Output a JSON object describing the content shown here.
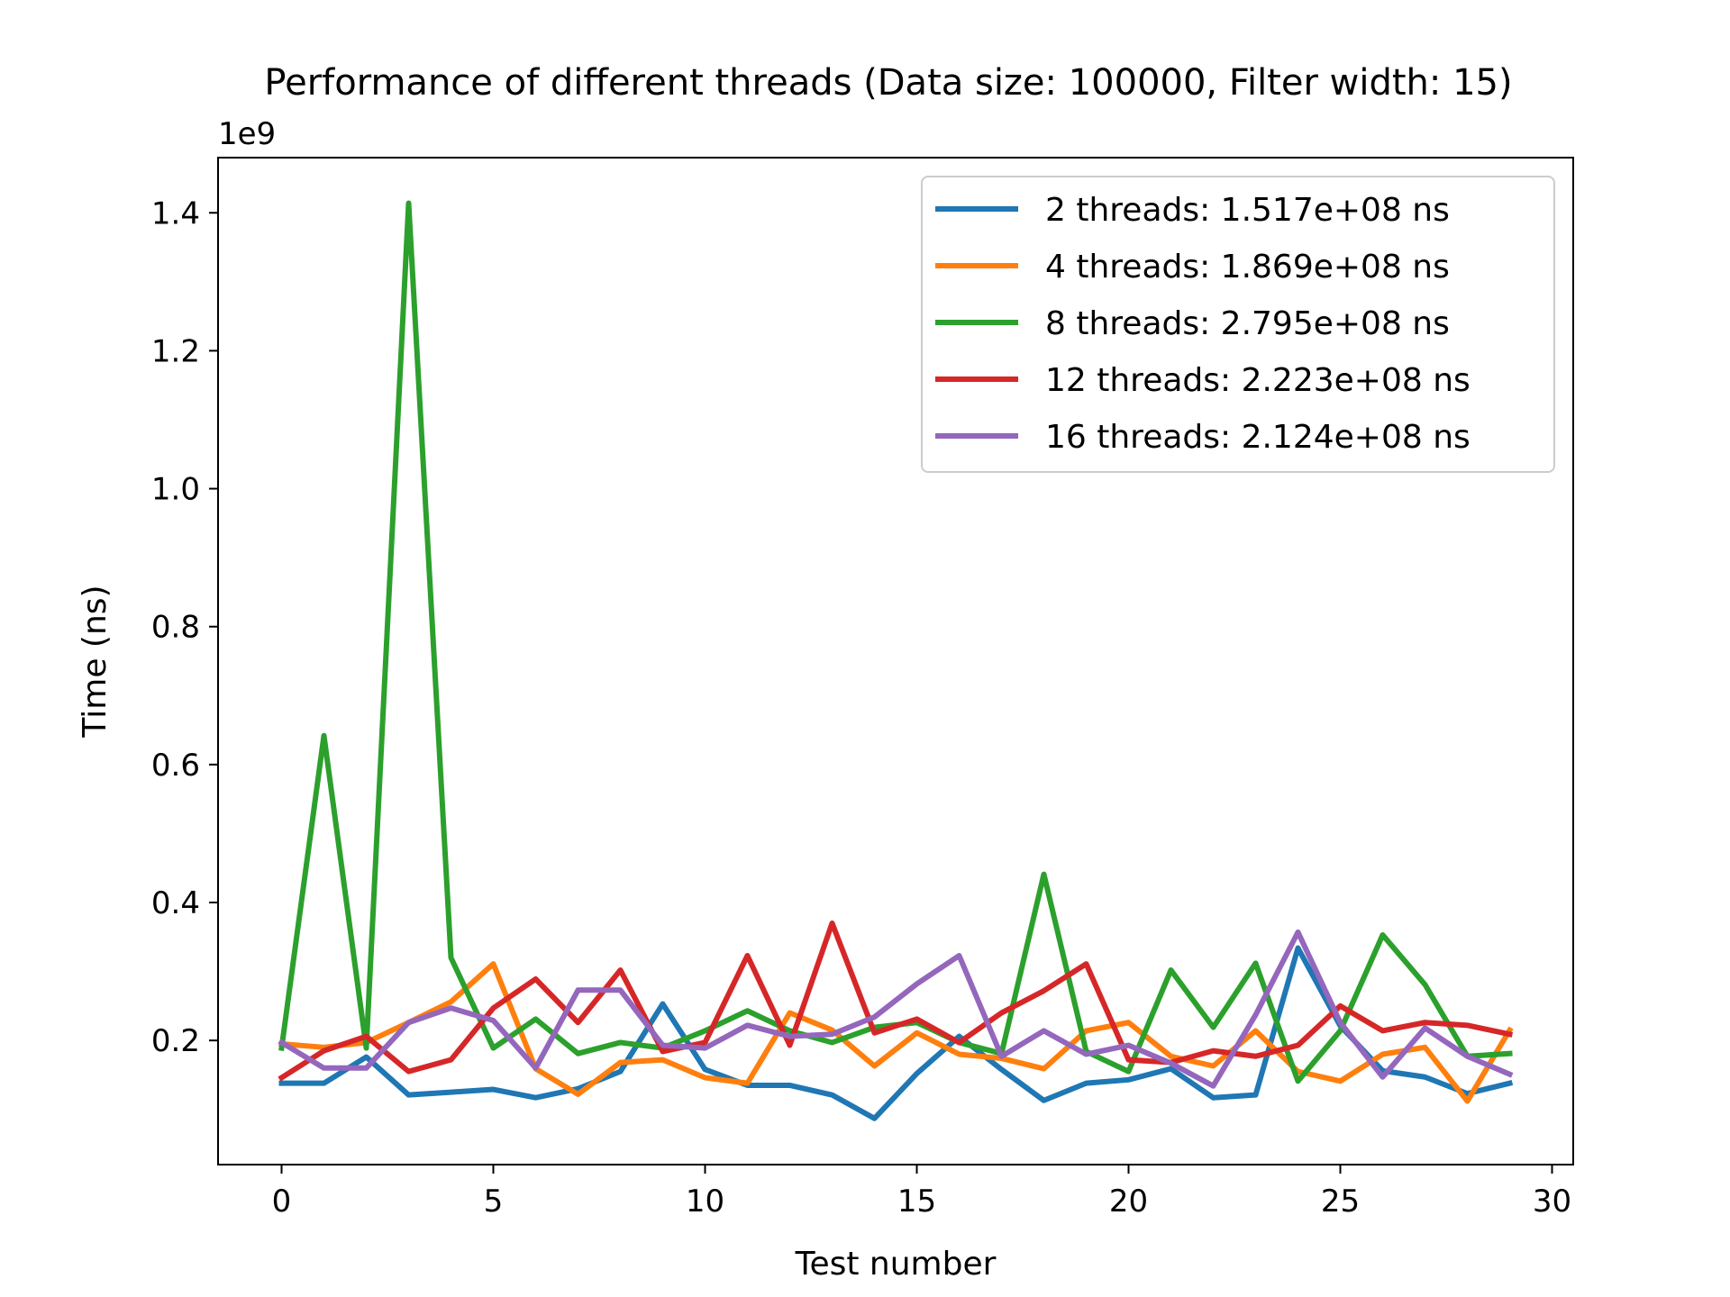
{
  "chart_data": {
    "type": "line",
    "title": "Performance of different threads (Data size: 100000, Filter width: 15)",
    "xlabel": "Test number",
    "ylabel": "Time (ns)",
    "y_offset_label": "1e9",
    "xlim": [
      -1.5,
      30.5
    ],
    "ylim": [
      0.02,
      1.48
    ],
    "x_ticks": [
      0,
      5,
      10,
      15,
      20,
      25,
      30
    ],
    "x_tick_labels": [
      "0",
      "5",
      "10",
      "15",
      "20",
      "25",
      "30"
    ],
    "y_ticks": [
      0.2,
      0.4,
      0.6,
      0.8,
      1.0,
      1.2,
      1.4
    ],
    "y_tick_labels": [
      "0.2",
      "0.4",
      "0.6",
      "0.8",
      "1.0",
      "1.2",
      "1.4"
    ],
    "grid": false,
    "legend_position": "top-right",
    "x": [
      0,
      1,
      2,
      3,
      4,
      5,
      6,
      7,
      8,
      9,
      10,
      11,
      12,
      13,
      14,
      15,
      16,
      17,
      18,
      19,
      20,
      21,
      22,
      23,
      24,
      25,
      26,
      27,
      28,
      29
    ],
    "series": [
      {
        "name": "2 threads: 1.517e+08 ns",
        "color": "#1f77b4",
        "values": [
          0.138,
          0.138,
          0.176,
          0.121,
          0.125,
          0.129,
          0.117,
          0.13,
          0.155,
          0.253,
          0.158,
          0.135,
          0.135,
          0.121,
          0.087,
          0.152,
          0.206,
          0.158,
          0.113,
          0.138,
          0.143,
          0.159,
          0.117,
          0.121,
          0.334,
          0.221,
          0.156,
          0.147,
          0.123,
          0.138
        ]
      },
      {
        "name": "4 threads: 1.869e+08 ns",
        "color": "#ff7f0e",
        "values": [
          0.195,
          0.19,
          0.197,
          0.226,
          0.256,
          0.311,
          0.159,
          0.122,
          0.168,
          0.172,
          0.146,
          0.138,
          0.24,
          0.215,
          0.163,
          0.211,
          0.18,
          0.174,
          0.159,
          0.214,
          0.226,
          0.177,
          0.163,
          0.214,
          0.155,
          0.141,
          0.18,
          0.19,
          0.112,
          0.215
        ]
      },
      {
        "name": "8 threads: 2.795e+08 ns",
        "color": "#2ca02c",
        "values": [
          0.189,
          0.642,
          0.189,
          1.414,
          0.32,
          0.189,
          0.231,
          0.181,
          0.197,
          0.189,
          0.214,
          0.243,
          0.214,
          0.197,
          0.219,
          0.226,
          0.197,
          0.181,
          0.441,
          0.184,
          0.155,
          0.302,
          0.219,
          0.312,
          0.141,
          0.214,
          0.353,
          0.281,
          0.177,
          0.181
        ]
      },
      {
        "name": "12 threads: 2.223e+08 ns",
        "color": "#d62728",
        "values": [
          0.146,
          0.185,
          0.206,
          0.155,
          0.172,
          0.247,
          0.289,
          0.226,
          0.302,
          0.184,
          0.197,
          0.323,
          0.193,
          0.37,
          0.211,
          0.231,
          0.197,
          0.24,
          0.272,
          0.311,
          0.172,
          0.168,
          0.185,
          0.177,
          0.193,
          0.25,
          0.214,
          0.226,
          0.222,
          0.209
        ]
      },
      {
        "name": "16 threads: 2.124e+08 ns",
        "color": "#9467bd",
        "values": [
          0.197,
          0.16,
          0.16,
          0.226,
          0.247,
          0.229,
          0.16,
          0.273,
          0.273,
          0.193,
          0.189,
          0.222,
          0.206,
          0.209,
          0.234,
          0.282,
          0.323,
          0.177,
          0.214,
          0.18,
          0.193,
          0.167,
          0.134,
          0.237,
          0.357,
          0.226,
          0.147,
          0.218,
          0.177,
          0.151
        ]
      }
    ]
  }
}
